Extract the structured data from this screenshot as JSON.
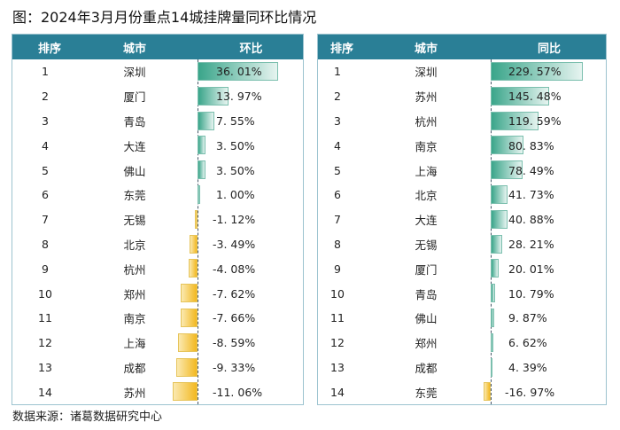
{
  "title": "图：2024年3月月份重点14城挂牌量同环比情况",
  "footer": "数据来源：诸葛数据研究中心",
  "colors": {
    "header": "#2a7f96",
    "positive": "#3aa58a",
    "negative": "#f2b820"
  },
  "chart_data": [
    {
      "type": "table",
      "headers": [
        "排序",
        "城市",
        "环比"
      ],
      "rows": [
        [
          "1",
          "深圳",
          36.01
        ],
        [
          "2",
          "厦门",
          13.97
        ],
        [
          "3",
          "青岛",
          7.55
        ],
        [
          "4",
          "大连",
          3.5
        ],
        [
          "5",
          "佛山",
          3.5
        ],
        [
          "6",
          "东莞",
          1.0
        ],
        [
          "7",
          "无锡",
          -1.12
        ],
        [
          "8",
          "北京",
          -3.49
        ],
        [
          "9",
          "杭州",
          -4.08
        ],
        [
          "10",
          "郑州",
          -7.62
        ],
        [
          "11",
          "南京",
          -7.66
        ],
        [
          "12",
          "上海",
          -8.59
        ],
        [
          "13",
          "成都",
          -9.33
        ],
        [
          "14",
          "苏州",
          -11.06
        ]
      ],
      "labels": [
        "36. 01%",
        "13. 97%",
        "7. 55%",
        "3. 50%",
        "3. 50%",
        "1. 00%",
        "-1. 12%",
        "-3. 49%",
        "-4. 08%",
        "-7. 62%",
        "-7. 66%",
        "-8. 59%",
        "-9. 33%",
        "-11. 06%"
      ]
    },
    {
      "type": "table",
      "headers": [
        "排序",
        "城市",
        "同比"
      ],
      "rows": [
        [
          "1",
          "深圳",
          229.57
        ],
        [
          "2",
          "苏州",
          145.48
        ],
        [
          "3",
          "杭州",
          119.59
        ],
        [
          "4",
          "南京",
          80.83
        ],
        [
          "5",
          "上海",
          78.49
        ],
        [
          "6",
          "北京",
          41.73
        ],
        [
          "7",
          "大连",
          40.88
        ],
        [
          "8",
          "无锡",
          28.21
        ],
        [
          "9",
          "厦门",
          20.01
        ],
        [
          "10",
          "青岛",
          10.79
        ],
        [
          "11",
          "佛山",
          9.87
        ],
        [
          "12",
          "郑州",
          6.62
        ],
        [
          "13",
          "成都",
          4.39
        ],
        [
          "14",
          "东莞",
          -16.97
        ]
      ],
      "labels": [
        "229. 57%",
        "145. 48%",
        "119. 59%",
        "80. 83%",
        "78. 49%",
        "41. 73%",
        "40. 88%",
        "28. 21%",
        "20. 01%",
        "10. 79%",
        "9. 87%",
        "6. 62%",
        "4. 39%",
        "-16. 97%"
      ]
    }
  ]
}
